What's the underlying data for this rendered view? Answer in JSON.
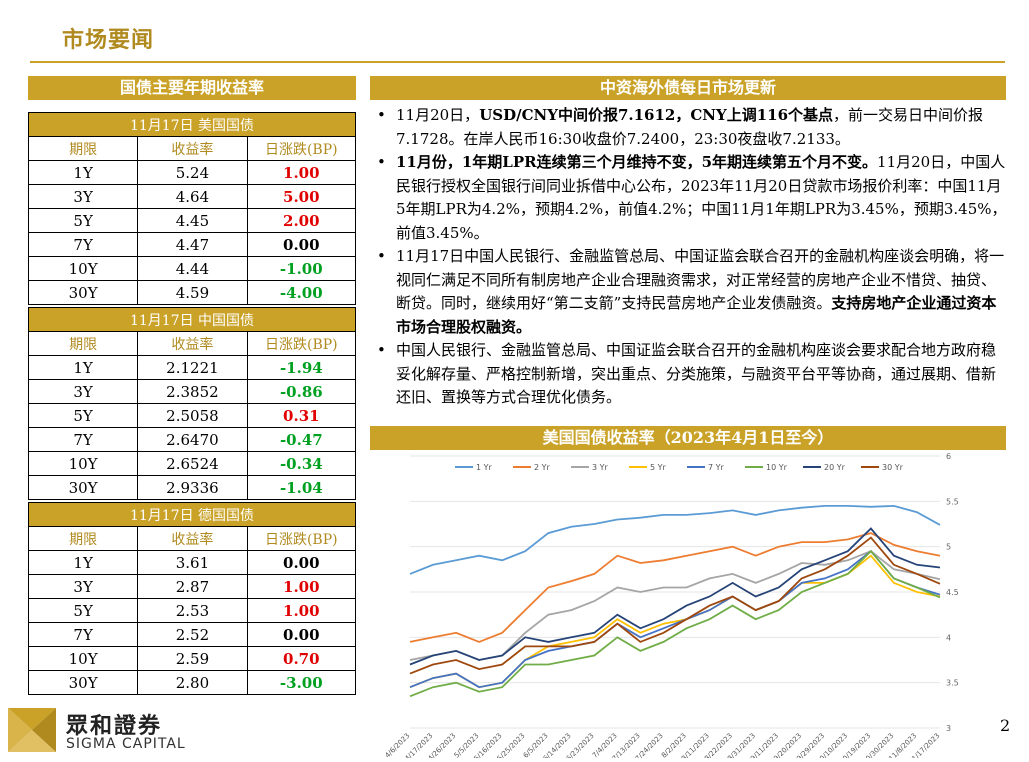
{
  "header": {
    "title": "市场要闻"
  },
  "left": {
    "title": "国债主要年期收益率",
    "columns": [
      "期限",
      "收益率",
      "日涨跌(BP)"
    ],
    "sections": [
      {
        "label": "11月17日  美国国债",
        "rows": [
          {
            "tenor": "1Y",
            "yield": "5.24",
            "change": "1.00",
            "sign": "pos"
          },
          {
            "tenor": "3Y",
            "yield": "4.64",
            "change": "5.00",
            "sign": "pos"
          },
          {
            "tenor": "5Y",
            "yield": "4.45",
            "change": "2.00",
            "sign": "pos"
          },
          {
            "tenor": "7Y",
            "yield": "4.47",
            "change": "0.00",
            "sign": "zero"
          },
          {
            "tenor": "10Y",
            "yield": "4.44",
            "change": "-1.00",
            "sign": "neg"
          },
          {
            "tenor": "30Y",
            "yield": "4.59",
            "change": "-4.00",
            "sign": "neg"
          }
        ]
      },
      {
        "label": "11月17日  中国国债",
        "rows": [
          {
            "tenor": "1Y",
            "yield": "2.1221",
            "change": "-1.94",
            "sign": "neg"
          },
          {
            "tenor": "3Y",
            "yield": "2.3852",
            "change": "-0.86",
            "sign": "neg"
          },
          {
            "tenor": "5Y",
            "yield": "2.5058",
            "change": "0.31",
            "sign": "pos"
          },
          {
            "tenor": "7Y",
            "yield": "2.6470",
            "change": "-0.47",
            "sign": "neg"
          },
          {
            "tenor": "10Y",
            "yield": "2.6524",
            "change": "-0.34",
            "sign": "neg"
          },
          {
            "tenor": "30Y",
            "yield": "2.9336",
            "change": "-1.04",
            "sign": "neg"
          }
        ]
      },
      {
        "label": "11月17日  德国国债",
        "rows": [
          {
            "tenor": "1Y",
            "yield": "3.61",
            "change": "0.00",
            "sign": "zero"
          },
          {
            "tenor": "3Y",
            "yield": "2.87",
            "change": "1.00",
            "sign": "pos"
          },
          {
            "tenor": "5Y",
            "yield": "2.53",
            "change": "1.00",
            "sign": "pos"
          },
          {
            "tenor": "7Y",
            "yield": "2.52",
            "change": "0.00",
            "sign": "zero"
          },
          {
            "tenor": "10Y",
            "yield": "2.59",
            "change": "0.70",
            "sign": "pos"
          },
          {
            "tenor": "30Y",
            "yield": "2.80",
            "change": "-3.00",
            "sign": "neg"
          }
        ]
      }
    ]
  },
  "right": {
    "title": "中资海外债每日市场更新",
    "bullets": [
      [
        {
          "t": "11月20日，",
          "b": false
        },
        {
          "t": "USD/CNY中间价报7.1612，CNY上调116个基点",
          "b": true
        },
        {
          "t": "，前一交易日中间价报7.1728。在岸人民币16:30收盘价7.2400，23:30夜盘收7.2133。",
          "b": false
        }
      ],
      [
        {
          "t": "11月份，1年期LPR连续第三个月维持不变，5年期连续第五个月不变。",
          "b": true
        },
        {
          "t": "11月20日，中国人民银行授权全国银行间同业拆借中心公布，2023年11月20日贷款市场报价利率：中国11月5年期LPR为4.2%，预期4.2%，前值4.2%；中国11月1年期LPR为3.45%，预期3.45%，前值3.45%。",
          "b": false
        }
      ],
      [
        {
          "t": "11月17日中国人民银行、金融监管总局、中国证监会联合召开的金融机构座谈会明确，将一视同仁满足不同所有制房地产企业合理融资需求，对正常经营的房地产企业不惜贷、抽贷、断贷。同时，继续用好“第二支箭”支持民营房地产企业发债融资。",
          "b": false
        },
        {
          "t": "支持房地产企业通过资本市场合理股权融资。",
          "b": true
        }
      ],
      [
        {
          "t": "中国人民银行、金融监管总局、中国证监会联合召开的金融机构座谈会要求配合地方政府稳妥化解存量、严格控制新增，突出重点、分类施策，与融资平台平等协商，通过展期、借新还旧、置换等方式合理优化债务。",
          "b": false
        }
      ]
    ],
    "chart_title": "美国国债收益率（2023年4月1日至今）"
  },
  "chart_data": {
    "type": "line",
    "title": "",
    "y_side": "right",
    "ylim": [
      3,
      6
    ],
    "y_ticks": [
      "3",
      "3.5",
      "4",
      "4.5",
      "5",
      "5.5",
      "6"
    ],
    "x_ticks": [
      "4/6/2023",
      "4/17/2023",
      "4/26/2023",
      "5/5/2023",
      "5/16/2023",
      "5/25/2023",
      "6/5/2023",
      "6/14/2023",
      "6/23/2023",
      "7/4/2023",
      "7/13/2023",
      "7/24/2023",
      "8/2/2023",
      "8/11/2023",
      "8/22/2023",
      "8/31/2023",
      "9/11/2023",
      "9/20/2023",
      "9/29/2023",
      "10/10/2023",
      "10/19/2023",
      "10/30/2023",
      "11/8/2023",
      "11/17/2023"
    ],
    "legend_position": "top",
    "grid": "horizontal",
    "series": [
      {
        "name": "1 Yr",
        "color": "#5b9bd5",
        "values": [
          4.7,
          4.8,
          4.85,
          4.9,
          4.85,
          4.95,
          5.15,
          5.22,
          5.25,
          5.3,
          5.32,
          5.35,
          5.35,
          5.37,
          5.4,
          5.35,
          5.4,
          5.43,
          5.45,
          5.45,
          5.44,
          5.45,
          5.38,
          5.24
        ]
      },
      {
        "name": "2 Yr",
        "color": "#ed7d31",
        "values": [
          3.95,
          4.0,
          4.05,
          3.95,
          4.05,
          4.3,
          4.55,
          4.62,
          4.7,
          4.9,
          4.82,
          4.85,
          4.9,
          4.95,
          5.0,
          4.9,
          5.0,
          5.05,
          5.05,
          5.08,
          5.15,
          5.02,
          4.95,
          4.9
        ]
      },
      {
        "name": "3 Yr",
        "color": "#a5a5a5",
        "values": [
          3.75,
          3.8,
          3.85,
          3.75,
          3.8,
          4.05,
          4.25,
          4.3,
          4.4,
          4.55,
          4.5,
          4.55,
          4.55,
          4.65,
          4.7,
          4.6,
          4.7,
          4.82,
          4.8,
          4.85,
          4.95,
          4.75,
          4.7,
          4.64
        ]
      },
      {
        "name": "5 Yr",
        "color": "#ffc000",
        "values": [
          3.45,
          3.55,
          3.6,
          3.45,
          3.5,
          3.75,
          3.9,
          3.95,
          4.0,
          4.2,
          4.05,
          4.15,
          4.2,
          4.3,
          4.45,
          4.3,
          4.4,
          4.6,
          4.6,
          4.7,
          4.9,
          4.6,
          4.5,
          4.45
        ]
      },
      {
        "name": "7 Yr",
        "color": "#4472c4",
        "values": [
          3.45,
          3.55,
          3.6,
          3.45,
          3.5,
          3.75,
          3.85,
          3.9,
          3.95,
          4.15,
          4.0,
          4.1,
          4.2,
          4.3,
          4.45,
          4.3,
          4.4,
          4.6,
          4.65,
          4.75,
          4.95,
          4.65,
          4.55,
          4.47
        ]
      },
      {
        "name": "10 Yr",
        "color": "#70ad47",
        "values": [
          3.35,
          3.45,
          3.5,
          3.4,
          3.45,
          3.7,
          3.7,
          3.75,
          3.8,
          4.0,
          3.85,
          3.95,
          4.1,
          4.2,
          4.35,
          4.2,
          4.3,
          4.5,
          4.6,
          4.7,
          4.95,
          4.65,
          4.55,
          4.44
        ]
      },
      {
        "name": "20 Yr",
        "color": "#264478",
        "values": [
          3.7,
          3.8,
          3.85,
          3.75,
          3.8,
          4.0,
          3.95,
          4.0,
          4.05,
          4.25,
          4.1,
          4.2,
          4.35,
          4.45,
          4.6,
          4.45,
          4.55,
          4.75,
          4.85,
          4.95,
          5.2,
          4.9,
          4.8,
          4.77
        ]
      },
      {
        "name": "30 Yr",
        "color": "#9e480e",
        "values": [
          3.6,
          3.7,
          3.75,
          3.65,
          3.7,
          3.9,
          3.9,
          3.9,
          3.95,
          4.15,
          3.95,
          4.05,
          4.2,
          4.35,
          4.45,
          4.3,
          4.4,
          4.65,
          4.75,
          4.9,
          5.1,
          4.8,
          4.7,
          4.59
        ]
      }
    ]
  },
  "brand": {
    "name_cn": "眾和證券",
    "name_en": "SIGMA CAPITAL"
  },
  "page_number": "2"
}
